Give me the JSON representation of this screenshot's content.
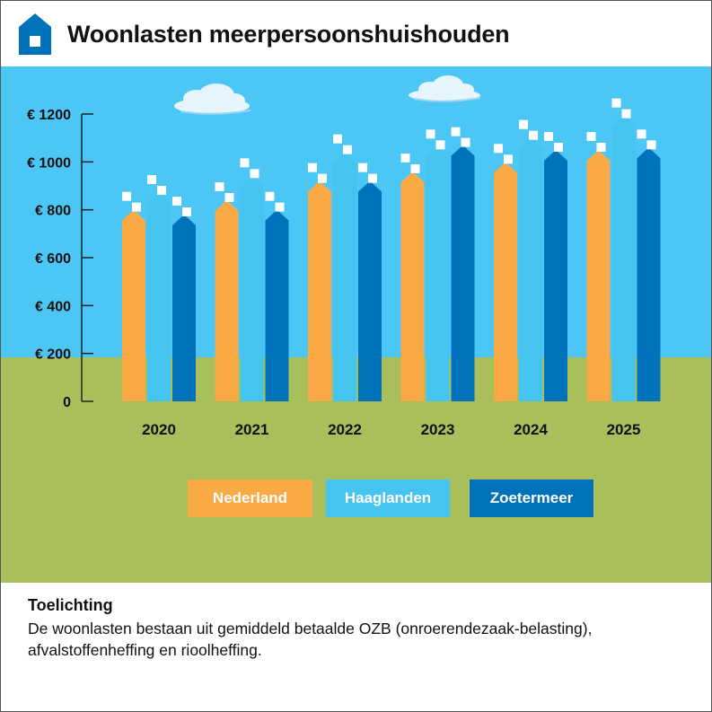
{
  "title": "Woonlasten meerpersoonshuishouden",
  "chart_data": {
    "type": "bar",
    "title": "Woonlasten meerpersoonshuishouden",
    "xlabel": "",
    "ylabel": "",
    "ylim": [
      0,
      1200
    ],
    "yticks": [
      "0",
      "€ 200",
      "€ 400",
      "€ 600",
      "€ 800",
      "€ 1000",
      "€ 1200"
    ],
    "categories": [
      "2020",
      "2021",
      "2022",
      "2023",
      "2024",
      "2025"
    ],
    "series": [
      {
        "name": "Nederland",
        "color": "#f9aa45",
        "values": [
          800,
          840,
          920,
          960,
          1000,
          1050
        ]
      },
      {
        "name": "Haaglanden",
        "color": "#45c4f0",
        "values": [
          870,
          940,
          1040,
          1060,
          1100,
          1190
        ]
      },
      {
        "name": "Zoetermeer",
        "color": "#0072bc",
        "values": [
          780,
          800,
          920,
          1070,
          1050,
          1060
        ]
      }
    ],
    "legend_position": "bottom"
  },
  "legend": {
    "nederland": "Nederland",
    "haaglanden": "Haaglanden",
    "zoetermeer": "Zoetermeer"
  },
  "explanation": {
    "title": "Toelichting",
    "text": "De woonlasten bestaan uit gemiddeld betaalde OZB (onroerendezaak-belasting), afvalstoffenheffing en rioolheffing."
  },
  "colors": {
    "sky": "#4cc6f4",
    "grass": "#a9bf5c",
    "axis": "#222222",
    "house_icon": "#0072bc"
  }
}
